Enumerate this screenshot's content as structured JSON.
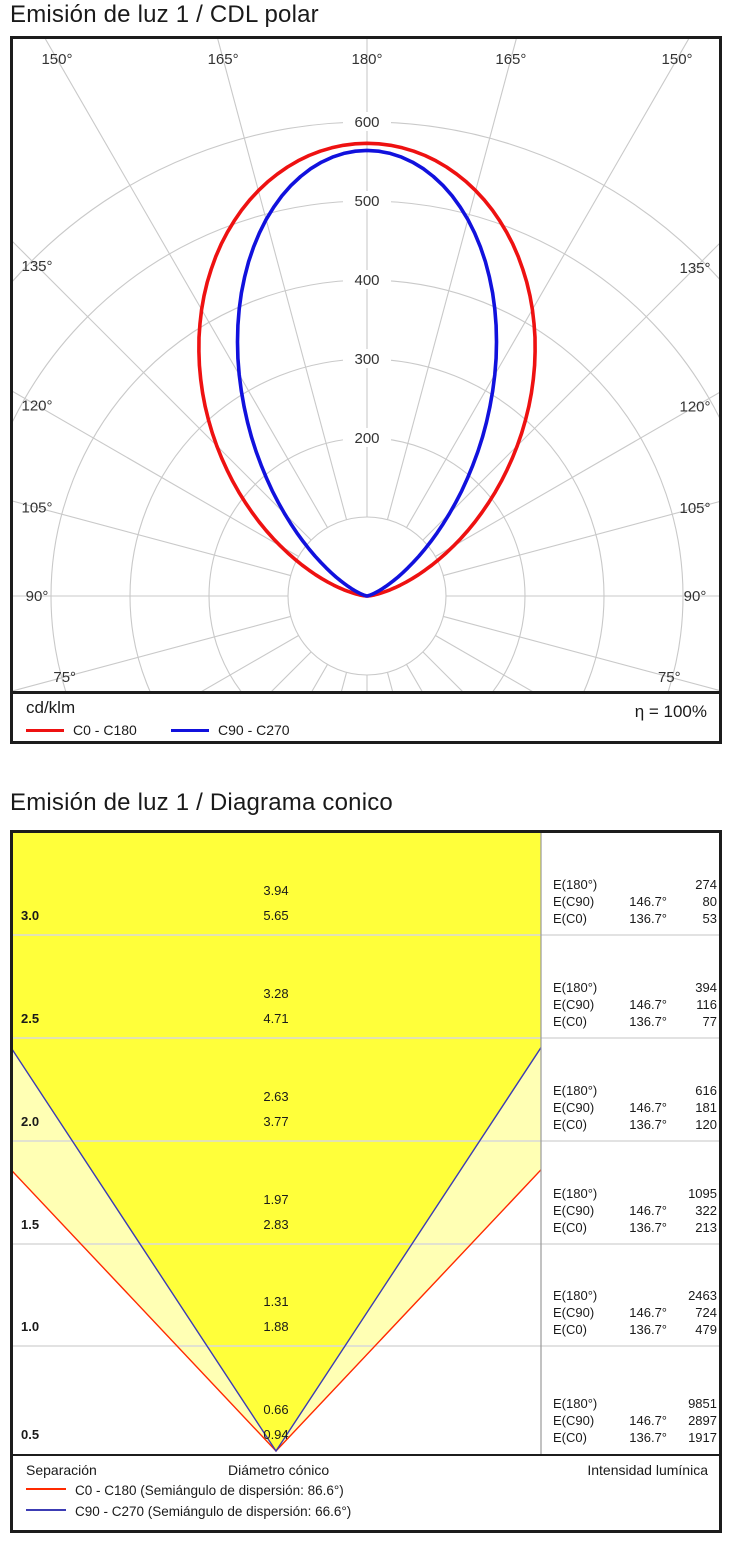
{
  "polar": {
    "title": "Emisión de luz 1 / CDL polar",
    "unit_label": "cd/klm",
    "efficiency_label": "η = 100%",
    "legend": [
      {
        "label": "C0 - C180",
        "color": "#ee1111"
      },
      {
        "label": "C90 - C270",
        "color": "#1111dd"
      }
    ],
    "chart_data": {
      "type": "line",
      "subtype": "polar-luminous-intensity",
      "unit": "cd/klm",
      "efficiency": "100%",
      "radial_rings": [
        100,
        200,
        300,
        400,
        500,
        600
      ],
      "radial_tick_labels": [
        "200",
        "300",
        "400",
        "500",
        "600"
      ],
      "radial_max": 600,
      "angle_step_deg": 15,
      "angle_labels": [
        {
          "text": "180°",
          "beta": 0,
          "side": 0
        },
        {
          "text": "165°",
          "beta": 15,
          "side": -1
        },
        {
          "text": "165°",
          "beta": 15,
          "side": 1
        },
        {
          "text": "150°",
          "beta": 30,
          "side": -1
        },
        {
          "text": "150°",
          "beta": 30,
          "side": 1
        },
        {
          "text": "135°",
          "beta": 45,
          "side": -1
        },
        {
          "text": "135°",
          "beta": 45,
          "side": 1
        },
        {
          "text": "120°",
          "beta": 60,
          "side": -1
        },
        {
          "text": "120°",
          "beta": 60,
          "side": 1
        },
        {
          "text": "105°",
          "beta": 75,
          "side": -1
        },
        {
          "text": "105°",
          "beta": 75,
          "side": 1
        },
        {
          "text": "90°",
          "beta": 90,
          "side": -1
        },
        {
          "text": "90°",
          "beta": 90,
          "side": 1
        },
        {
          "text": "75°",
          "beta": 105,
          "side": -1
        },
        {
          "text": "75°",
          "beta": 105,
          "side": 1
        }
      ],
      "series": [
        {
          "name": "C0 - C180",
          "color": "#ee1111",
          "peak_cd_klm": 573,
          "peak_at": "180°",
          "half_value_angle_deg": 43.3
        },
        {
          "name": "C90 - C270",
          "color": "#1111dd",
          "peak_cd_klm": 564,
          "peak_at": "180°",
          "half_value_angle_deg": 33.3
        }
      ]
    }
  },
  "cone": {
    "title": "Emisión de luz 1 / Diagrama conico",
    "legend": {
      "col_separation": "Separación",
      "col_diameter": "Diámetro cónico",
      "col_intensity": "Intensidad lumínica",
      "items": [
        {
          "label": "C0 - C180 (Semiángulo de dispersión: 86.6°)",
          "color": "#ff2a00"
        },
        {
          "label": "C90 - C270 (Semiángulo de dispersión: 66.6°)",
          "color": "#3c3cb4"
        }
      ]
    },
    "chart_data": {
      "type": "cone-diagram",
      "beam_half_angle_c0_deg": 43.3,
      "beam_half_angle_c90_deg": 33.3,
      "row_labels": {
        "e180": "E(180°)",
        "ec90": "E(C90)",
        "ec0": "E(C0)",
        "ec90_angle": "146.7°",
        "ec0_angle": "136.7°"
      },
      "rows": [
        {
          "separation": "3.0",
          "diameter_c90": "3.94",
          "diameter_c0": "5.65",
          "e180_lux": "274",
          "ec90_lux": "80",
          "ec0_lux": "53"
        },
        {
          "separation": "2.5",
          "diameter_c90": "3.28",
          "diameter_c0": "4.71",
          "e180_lux": "394",
          "ec90_lux": "116",
          "ec0_lux": "77"
        },
        {
          "separation": "2.0",
          "diameter_c90": "2.63",
          "diameter_c0": "3.77",
          "e180_lux": "616",
          "ec90_lux": "181",
          "ec0_lux": "120"
        },
        {
          "separation": "1.5",
          "diameter_c90": "1.97",
          "diameter_c0": "2.83",
          "e180_lux": "1095",
          "ec90_lux": "322",
          "ec0_lux": "213"
        },
        {
          "separation": "1.0",
          "diameter_c90": "1.31",
          "diameter_c0": "1.88",
          "e180_lux": "2463",
          "ec90_lux": "724",
          "ec0_lux": "479"
        },
        {
          "separation": "0.5",
          "diameter_c90": "0.66",
          "diameter_c0": "0.94",
          "e180_lux": "9851",
          "ec90_lux": "2897",
          "ec0_lux": "1917"
        }
      ],
      "colors": {
        "cone_inner_fill": "#ffff3a",
        "cone_outer_fill": "#ffffb4",
        "line_c0": "#ff2a00",
        "line_c90": "#3c3cb4",
        "grid": "#d9d9d9"
      }
    }
  }
}
